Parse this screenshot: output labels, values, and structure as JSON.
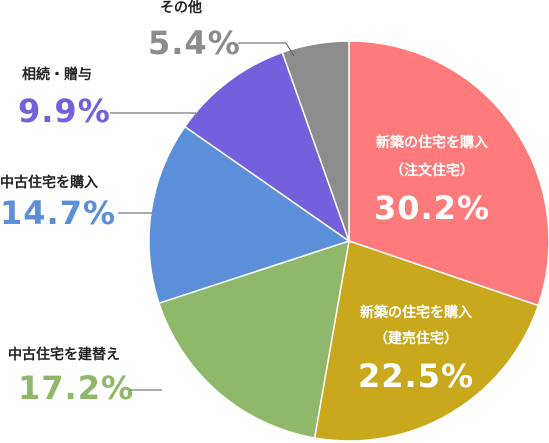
{
  "chart_data": {
    "type": "pie",
    "categories": [
      [
        "新築の住宅を購入",
        "（注文住宅）"
      ],
      [
        "新築の住宅を購入",
        "（建売住宅）"
      ],
      [
        "中古住宅を建替え"
      ],
      [
        "中古住宅を購入"
      ],
      [
        "相続・贈与"
      ],
      [
        "その他"
      ]
    ],
    "values": [
      30.2,
      22.5,
      17.2,
      14.7,
      9.9,
      5.4
    ],
    "value_labels": [
      "30.2%",
      "22.5%",
      "17.2%",
      "14.7%",
      "9.9%",
      "5.4%"
    ],
    "colors": [
      "#ff7b7b",
      "#c9a81e",
      "#8fb86a",
      "#5b8fd9",
      "#7360dd",
      "#8c8c8c"
    ]
  }
}
